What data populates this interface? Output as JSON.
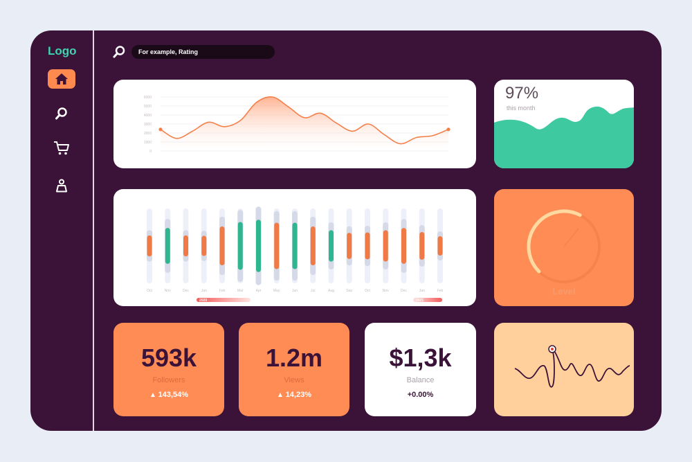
{
  "sidebar": {
    "logo": "Logo",
    "items": [
      {
        "name": "home",
        "icon": "home-icon",
        "active": true
      },
      {
        "name": "search",
        "icon": "search-icon",
        "active": false
      },
      {
        "name": "cart",
        "icon": "cart-icon",
        "active": false
      },
      {
        "name": "profile",
        "icon": "user-icon",
        "active": false
      }
    ]
  },
  "search": {
    "placeholder": "For example, Rating"
  },
  "colors": {
    "background": "#3b1338",
    "accent_orange": "#ff8c55",
    "accent_green": "#3ec9a0",
    "peach": "#ffcf9c"
  },
  "growth": {
    "value": "97%",
    "label": "this month"
  },
  "gauge": {
    "label": "Level",
    "fraction": 0.6
  },
  "stats": [
    {
      "value": "593k",
      "label": "Followers",
      "change": "143,54%",
      "trend": "up"
    },
    {
      "value": "1.2m",
      "label": "Views",
      "change": "14,23%",
      "trend": "up"
    },
    {
      "value": "$1,3k",
      "label": "Balance",
      "change": "+0.00%",
      "trend": "flat"
    }
  ],
  "chart_data": [
    {
      "type": "area",
      "yticks": [
        "6000",
        "5000",
        "4000",
        "3000",
        "2000",
        "1000",
        "0"
      ],
      "ylim": [
        0,
        6000
      ],
      "values": [
        2400,
        1400,
        2200,
        3200,
        2700,
        3400,
        5400,
        6000,
        4900,
        3700,
        4200,
        3100,
        2200,
        3000,
        1800,
        800,
        1500,
        1700,
        2400
      ]
    },
    {
      "type": "bar",
      "categories": [
        "Oct",
        "Nov",
        "Dec",
        "Jan",
        "Feb",
        "Mar",
        "Apr",
        "May",
        "Jun",
        "Jul",
        "Aug",
        "Sep",
        "Oct",
        "Nov",
        "Dec",
        "Jan",
        "Feb"
      ],
      "values": [
        28,
        48,
        28,
        27,
        52,
        64,
        70,
        62,
        62,
        52,
        42,
        35,
        36,
        42,
        48,
        37,
        26
      ],
      "highlight": [
        false,
        true,
        false,
        false,
        false,
        true,
        true,
        false,
        true,
        false,
        true,
        false,
        false,
        false,
        false,
        false,
        false
      ],
      "range_labels": [
        "2020",
        "2021"
      ]
    }
  ]
}
